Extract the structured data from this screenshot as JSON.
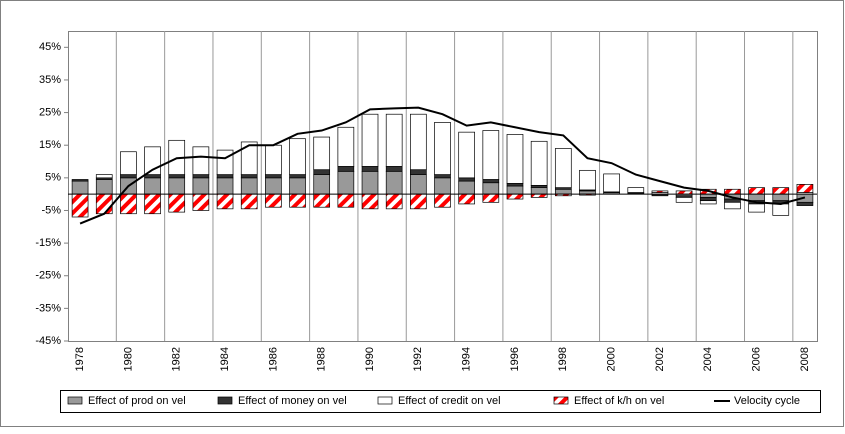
{
  "chart_data": {
    "type": "bar",
    "stacked": true,
    "categories": [
      "1978",
      null,
      "1980",
      null,
      "1982",
      null,
      "1984",
      null,
      "1986",
      null,
      "1988",
      null,
      "1990",
      null,
      "1992",
      null,
      "1994",
      null,
      "1996",
      null,
      "1998",
      null,
      "2000",
      null,
      "2002",
      null,
      "2004",
      null,
      "2006",
      null,
      "2008"
    ],
    "series": [
      {
        "name": "Effect of prod on vel",
        "color": "#999999",
        "values": [
          4,
          4.5,
          5,
          5,
          5,
          5,
          5,
          5,
          5,
          5,
          6,
          7,
          7,
          7,
          6,
          5,
          4,
          3.5,
          2.5,
          2,
          1.5,
          1,
          0.5,
          0.3,
          0,
          -0.5,
          -1,
          -1.5,
          -2,
          -2,
          -2.5
        ]
      },
      {
        "name": "Effect of money on vel",
        "color": "#333333",
        "values": [
          0.5,
          0.5,
          1,
          1,
          1,
          1,
          1,
          1,
          1,
          1,
          1.5,
          1.5,
          1.5,
          1.5,
          1.5,
          1,
          1,
          1,
          0.8,
          0.7,
          0.5,
          0.3,
          0.2,
          0.2,
          -0.5,
          -0.5,
          -1,
          -1,
          -1,
          -1,
          -1
        ]
      },
      {
        "name": "Effect of credit on vel",
        "color": "#ffffff",
        "values": [
          0,
          1,
          7,
          8.5,
          10.5,
          8.5,
          7.5,
          10,
          9,
          11,
          10,
          12,
          16,
          16,
          17,
          16,
          14,
          15,
          15,
          13.5,
          12,
          6,
          5.5,
          1.5,
          0.5,
          -1.5,
          -1,
          -2,
          -2.5,
          -3.5,
          0.5
        ]
      },
      {
        "name": "Effect of k/h on vel",
        "color": "#ff0000",
        "hatch": true,
        "values": [
          -7,
          -6,
          -6,
          -6,
          -5.5,
          -5,
          -4.5,
          -4.5,
          -4,
          -4,
          -4,
          -4,
          -4.5,
          -4.5,
          -4.5,
          -4,
          -3,
          -2.5,
          -1.5,
          -1,
          -0.5,
          -0.3,
          0,
          0,
          0.5,
          1,
          1.5,
          1.5,
          2,
          2,
          2.5
        ]
      },
      {
        "name": "Velocity cycle",
        "color": "#000000",
        "type": "line",
        "values": [
          -9,
          -6,
          2.5,
          7.5,
          11,
          11.5,
          11,
          15,
          15,
          18.5,
          19.5,
          22,
          26,
          26.3,
          26.5,
          24.5,
          21,
          22,
          20.5,
          19,
          18,
          11,
          9.5,
          6,
          4,
          2,
          1,
          -1,
          -2.5,
          -3,
          -1
        ]
      }
    ],
    "ylim": [
      -45,
      50
    ],
    "yticks": [
      {
        "value": -45,
        "label": "-45%"
      },
      {
        "value": -35,
        "label": "-35%"
      },
      {
        "value": -25,
        "label": "-25%"
      },
      {
        "value": -15,
        "label": "-15%"
      },
      {
        "value": -5,
        "label": "-5%"
      },
      {
        "value": 5,
        "label": "5%"
      },
      {
        "value": 15,
        "label": "15%"
      },
      {
        "value": 25,
        "label": "25%"
      },
      {
        "value": 35,
        "label": "35%"
      },
      {
        "value": 45,
        "label": "45%"
      }
    ],
    "legend": "bottom"
  }
}
